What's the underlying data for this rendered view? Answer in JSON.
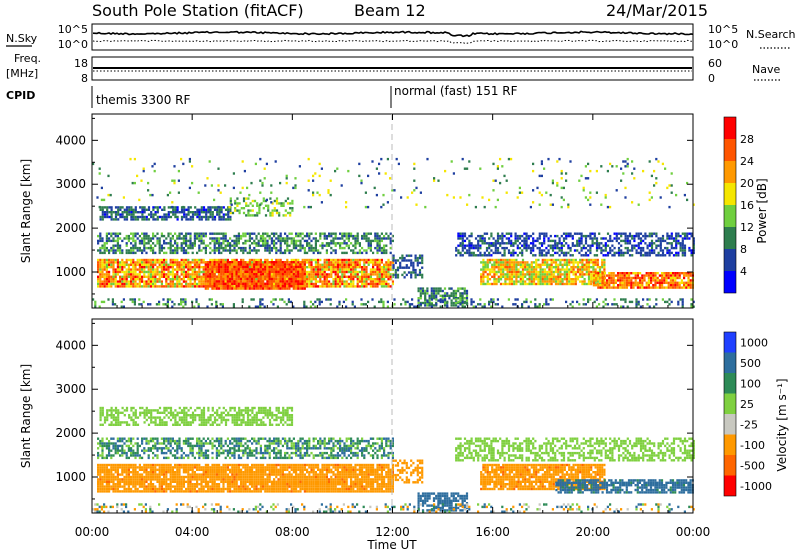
{
  "header": {
    "station": "South Pole Station (fitACF)",
    "beam": "Beam 12",
    "date": "24/Mar/2015"
  },
  "status_panels": {
    "nsky": {
      "label": "N.Sky",
      "left_ticks": [
        "10^5",
        "10^0"
      ]
    },
    "nsearch": {
      "label": "N.Search",
      "right_ticks": [
        "10^5",
        "10^0"
      ]
    },
    "freq": {
      "label_line1": "Freq.",
      "label_line2": "[MHz]",
      "left_ticks": [
        "18",
        "8"
      ]
    },
    "nave": {
      "label": "Nave",
      "right_ticks": [
        "60",
        "0"
      ]
    },
    "cpid": {
      "label": "CPID",
      "segments": [
        {
          "name": "themis 3300 RF",
          "start_hour": 0
        },
        {
          "name": "normal (fast) 151 RF",
          "start_hour": 12
        }
      ]
    }
  },
  "colors": {
    "power_scale": [
      "#0000ff",
      "#1e3fa0",
      "#2e7d4e",
      "#6fcf3f",
      "#f5e600",
      "#ff9900",
      "#ff5500",
      "#ff0000"
    ],
    "velocity_scale": [
      "#2040ff",
      "#2e6e9e",
      "#2e8b57",
      "#7fd040",
      "#c8c8c0",
      "#ff9900",
      "#ff6600",
      "#ff0000"
    ]
  },
  "chart_data": [
    {
      "type": "heatmap",
      "name": "power",
      "ylabel": "Slant Range [km]",
      "yticks": [
        1000,
        2000,
        3000,
        4000
      ],
      "ylim": [
        180,
        4600
      ],
      "xlim": [
        0,
        24
      ],
      "colorbar": {
        "label": "Power [dB]",
        "ticks": [
          4,
          8,
          12,
          16,
          20,
          24,
          28
        ],
        "range": [
          0,
          32
        ]
      },
      "scatter_bands": [
        {
          "x": [
            0.2,
            12.0
          ],
          "y": [
            650,
            1300
          ],
          "value_range": [
            14,
            30
          ],
          "density": 0.9
        },
        {
          "x": [
            4.5,
            8.5
          ],
          "y": [
            600,
            1250
          ],
          "value_range": [
            22,
            31
          ],
          "density": 0.95
        },
        {
          "x": [
            0.2,
            12.0
          ],
          "y": [
            1450,
            1900
          ],
          "value_range": [
            6,
            14
          ],
          "density": 0.6
        },
        {
          "x": [
            0.3,
            5.5
          ],
          "y": [
            2200,
            2500
          ],
          "value_range": [
            3,
            12
          ],
          "density": 0.7
        },
        {
          "x": [
            5.5,
            8.0
          ],
          "y": [
            2300,
            2700
          ],
          "value_range": [
            10,
            18
          ],
          "density": 0.4
        },
        {
          "x": [
            12.0,
            13.2
          ],
          "y": [
            900,
            1400
          ],
          "value_range": [
            4,
            10
          ],
          "density": 0.6
        },
        {
          "x": [
            13.0,
            15.0
          ],
          "y": [
            250,
            650
          ],
          "value_range": [
            6,
            14
          ],
          "density": 0.7
        },
        {
          "x": [
            15.5,
            20.5
          ],
          "y": [
            700,
            1300
          ],
          "value_range": [
            12,
            26
          ],
          "density": 0.85
        },
        {
          "x": [
            14.5,
            24.0
          ],
          "y": [
            1400,
            1900
          ],
          "value_range": [
            3,
            10
          ],
          "density": 0.55
        },
        {
          "x": [
            20.0,
            24.0
          ],
          "y": [
            650,
            1000
          ],
          "value_range": [
            18,
            30
          ],
          "density": 0.85
        },
        {
          "x": [
            0,
            24
          ],
          "y": [
            200,
            400
          ],
          "value_range": [
            4,
            14
          ],
          "density": 0.25
        },
        {
          "x": [
            0,
            24
          ],
          "y": [
            2500,
            3600
          ],
          "value_range": [
            4,
            20
          ],
          "density": 0.05
        }
      ]
    },
    {
      "type": "heatmap",
      "name": "velocity",
      "ylabel": "Slant Range [km]",
      "yticks": [
        1000,
        2000,
        3000,
        4000
      ],
      "ylim": [
        180,
        4600
      ],
      "xlim": [
        0,
        24
      ],
      "xticks": [
        "00:00",
        "04:00",
        "08:00",
        "12:00",
        "16:00",
        "20:00",
        "00:00"
      ],
      "xlabel": "Time UT",
      "colorbar": {
        "label": "Velocity [m s⁻¹]",
        "ticks": [
          "1000",
          "500",
          "100",
          "25",
          "-25",
          "-100",
          "-500",
          "-1000"
        ]
      },
      "scatter_bands": [
        {
          "x": [
            0.2,
            12.0
          ],
          "y": [
            650,
            1300
          ],
          "value_range": [
            -520,
            -120
          ],
          "density": 0.9
        },
        {
          "x": [
            0.2,
            12.0
          ],
          "y": [
            1450,
            1900
          ],
          "value_range": [
            -20,
            150
          ],
          "density": 0.6
        },
        {
          "x": [
            0.3,
            8.0
          ],
          "y": [
            2200,
            2600
          ],
          "value_range": [
            -20,
            20
          ],
          "density": 0.6
        },
        {
          "x": [
            12.0,
            13.2
          ],
          "y": [
            900,
            1400
          ],
          "value_range": [
            -400,
            -120
          ],
          "density": 0.55
        },
        {
          "x": [
            13.0,
            15.0
          ],
          "y": [
            250,
            650
          ],
          "value_range": [
            150,
            500
          ],
          "density": 0.7
        },
        {
          "x": [
            15.5,
            20.5
          ],
          "y": [
            700,
            1300
          ],
          "value_range": [
            -520,
            -150
          ],
          "density": 0.85
        },
        {
          "x": [
            14.5,
            24.0
          ],
          "y": [
            1400,
            1900
          ],
          "value_range": [
            -20,
            20
          ],
          "density": 0.55
        },
        {
          "x": [
            18.5,
            24.0
          ],
          "y": [
            650,
            950
          ],
          "value_range": [
            60,
            400
          ],
          "density": 0.8
        },
        {
          "x": [
            0,
            24
          ],
          "y": [
            200,
            400
          ],
          "value_range": [
            -200,
            200
          ],
          "density": 0.25
        }
      ]
    }
  ]
}
